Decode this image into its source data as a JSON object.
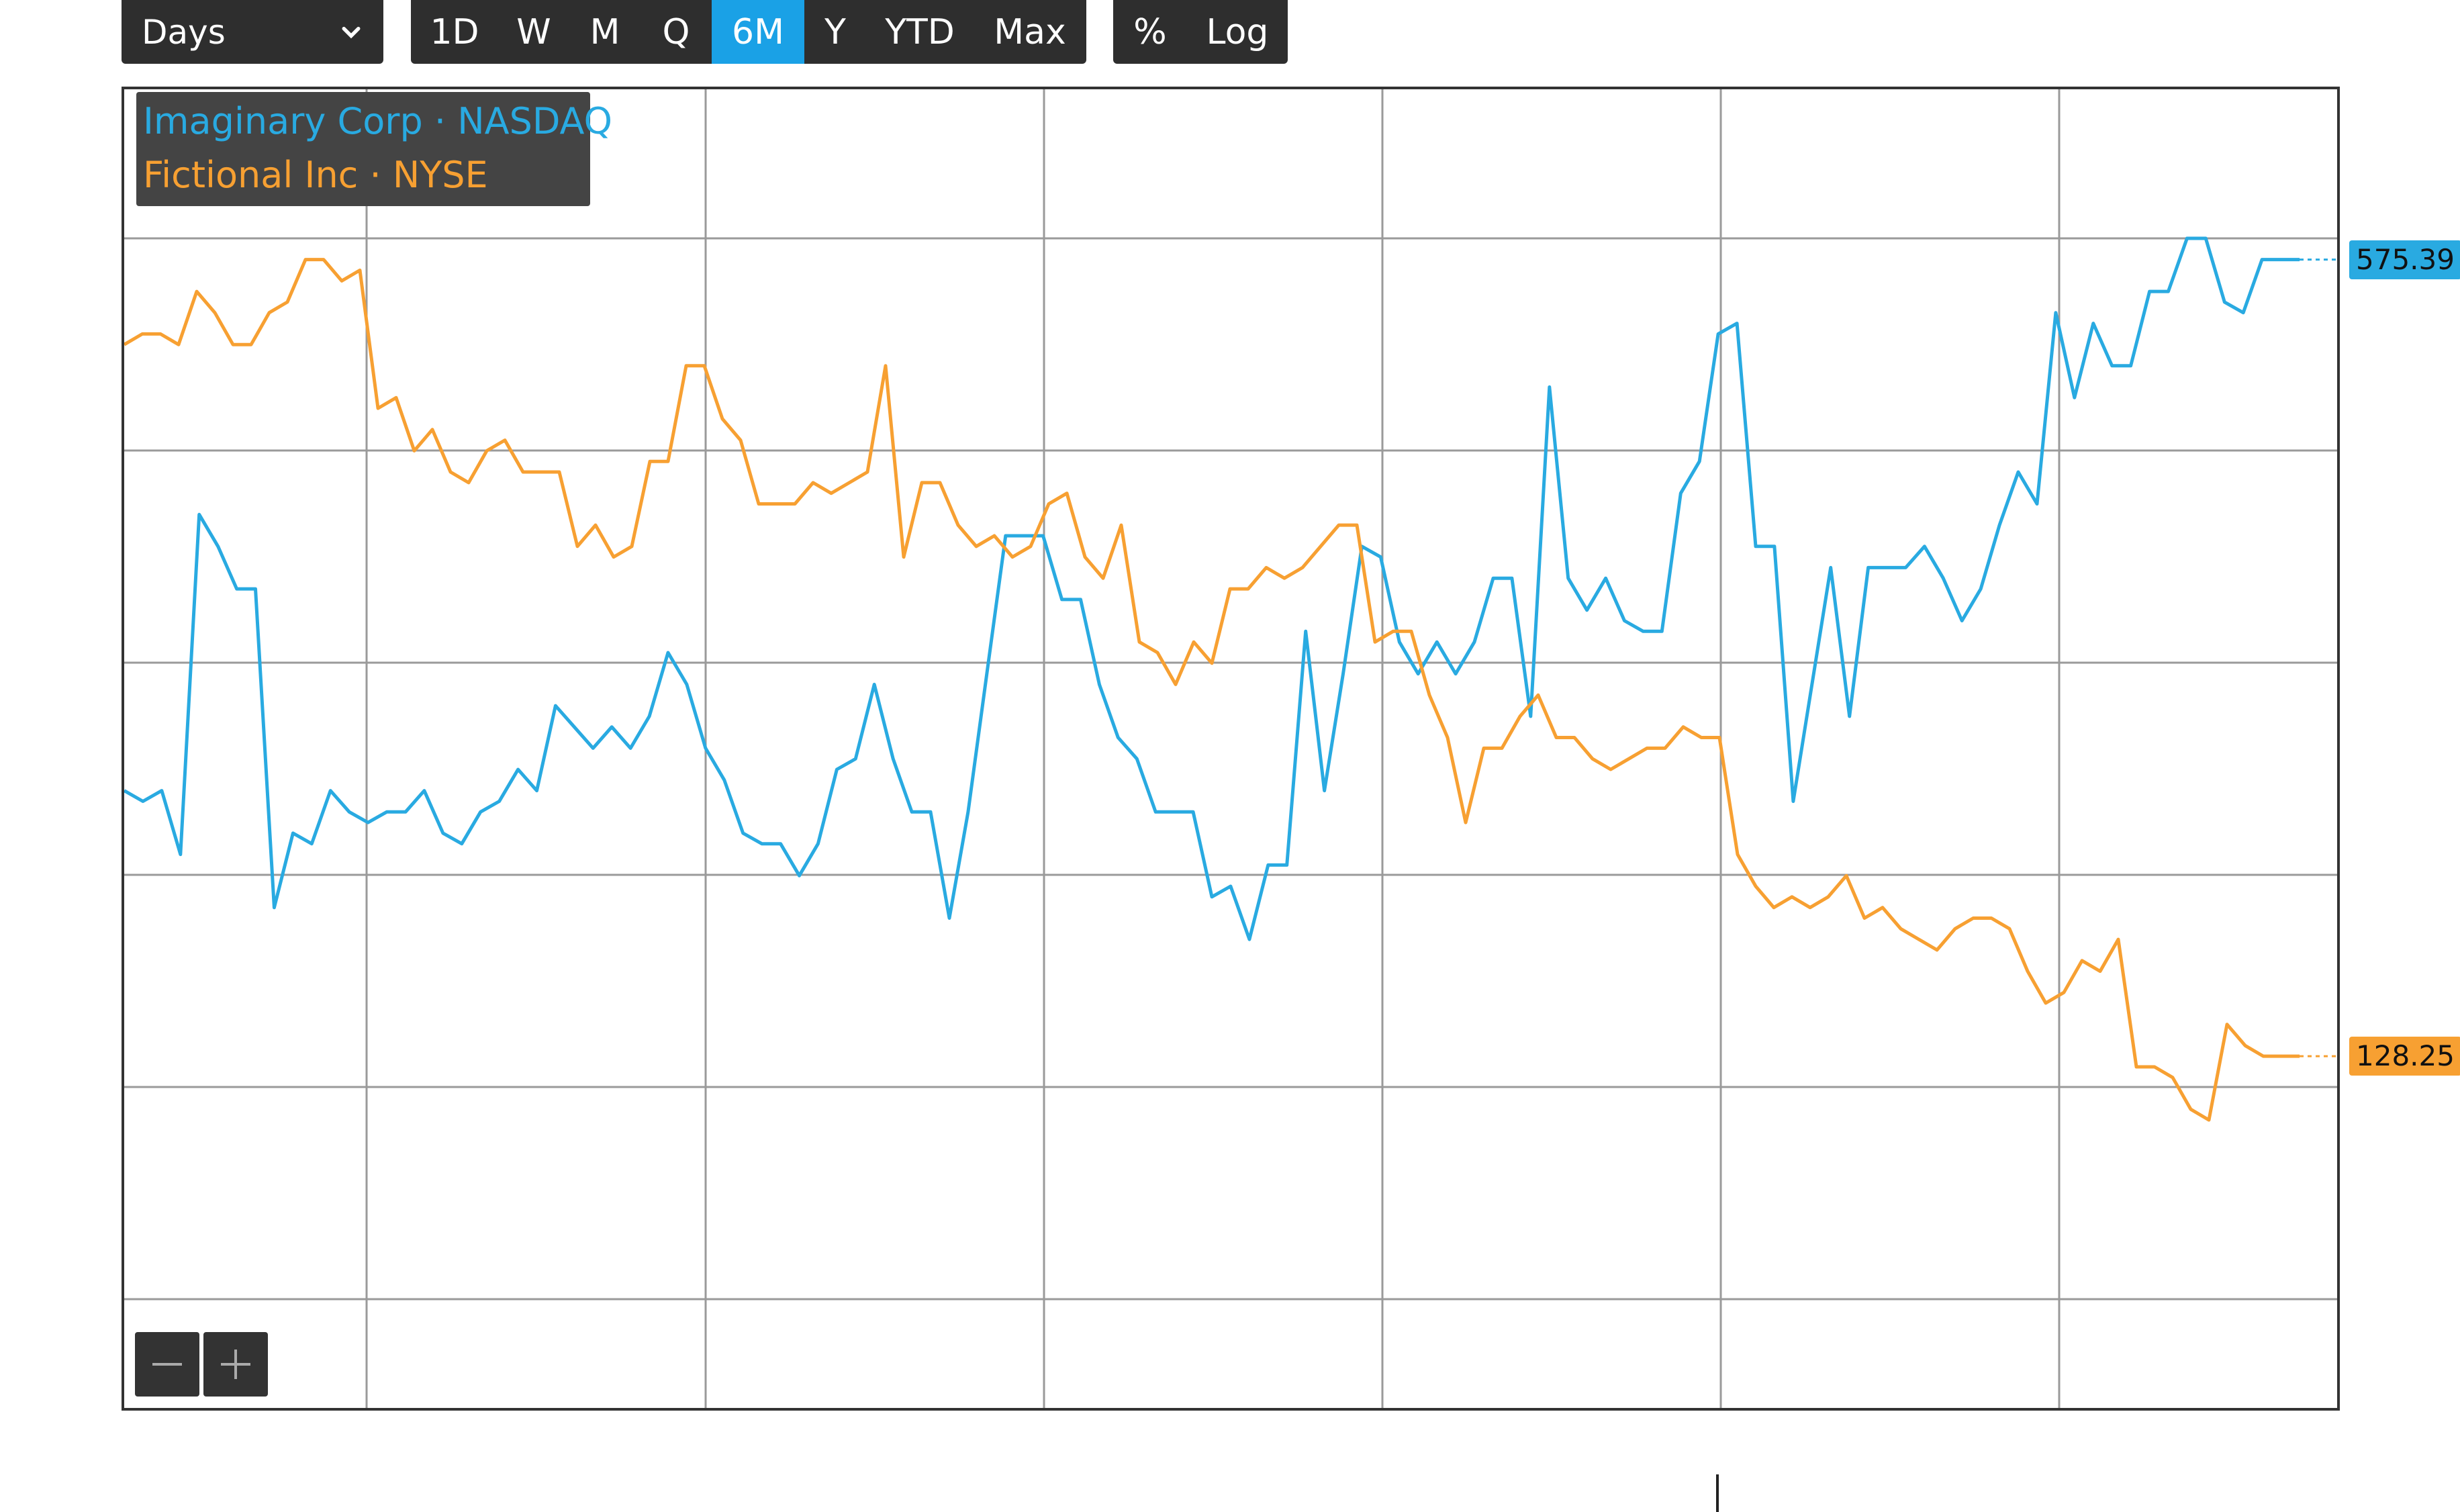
{
  "toolbar": {
    "interval": "Days",
    "ranges": [
      "1D",
      "W",
      "M",
      "Q",
      "6M",
      "Y",
      "YTD",
      "Max"
    ],
    "active_range": "6M",
    "scale_options": [
      "%",
      "Log"
    ]
  },
  "legend": {
    "series_a": "Imaginary Corp · NASDAQ",
    "series_b": "Fictional Inc · NYSE"
  },
  "colors": {
    "series_a": "#29aae1",
    "series_b": "#f7a032",
    "active_button": "#1aa1e6",
    "toolbar_bg": "#2e2e2e"
  },
  "zoom": {
    "out_icon": "minus-icon",
    "in_icon": "plus-icon"
  },
  "chart_data": {
    "type": "line",
    "grid": true,
    "series": [
      {
        "name": "Imaginary Corp · NASDAQ",
        "last_value": "575.39",
        "values": [
          0.48,
          0.47,
          0.48,
          0.42,
          0.74,
          0.71,
          0.67,
          0.67,
          0.37,
          0.44,
          0.43,
          0.48,
          0.46,
          0.45,
          0.46,
          0.46,
          0.48,
          0.44,
          0.43,
          0.46,
          0.47,
          0.5,
          0.48,
          0.56,
          0.54,
          0.52,
          0.54,
          0.52,
          0.55,
          0.61,
          0.58,
          0.52,
          0.49,
          0.44,
          0.43,
          0.43,
          0.4,
          0.43,
          0.5,
          0.51,
          0.58,
          0.51,
          0.46,
          0.46,
          0.36,
          0.46,
          0.59,
          0.72,
          0.72,
          0.72,
          0.66,
          0.66,
          0.58,
          0.53,
          0.51,
          0.46,
          0.46,
          0.46,
          0.38,
          0.39,
          0.34,
          0.41,
          0.41,
          0.63,
          0.48,
          0.59,
          0.71,
          0.7,
          0.62,
          0.59,
          0.62,
          0.59,
          0.62,
          0.68,
          0.68,
          0.55,
          0.86,
          0.68,
          0.65,
          0.68,
          0.64,
          0.63,
          0.63,
          0.76,
          0.79,
          0.91,
          0.92,
          0.71,
          0.71,
          0.47,
          0.58,
          0.69,
          0.55,
          0.69,
          0.69,
          0.69,
          0.71,
          0.68,
          0.64,
          0.67,
          0.73,
          0.78,
          0.75,
          0.93,
          0.85,
          0.92,
          0.88,
          0.88,
          0.95,
          0.95,
          1.0,
          1.0,
          0.94,
          0.93,
          0.98,
          0.98,
          0.98
        ]
      },
      {
        "name": "Fictional Inc · NYSE",
        "last_value": "128.25",
        "values": [
          0.9,
          0.91,
          0.91,
          0.9,
          0.95,
          0.93,
          0.9,
          0.9,
          0.93,
          0.94,
          0.98,
          0.98,
          0.96,
          0.97,
          0.84,
          0.85,
          0.8,
          0.82,
          0.78,
          0.77,
          0.8,
          0.81,
          0.78,
          0.78,
          0.78,
          0.71,
          0.73,
          0.7,
          0.71,
          0.79,
          0.79,
          0.88,
          0.88,
          0.83,
          0.81,
          0.75,
          0.75,
          0.75,
          0.77,
          0.76,
          0.77,
          0.78,
          0.88,
          0.7,
          0.77,
          0.77,
          0.73,
          0.71,
          0.72,
          0.7,
          0.71,
          0.75,
          0.76,
          0.7,
          0.68,
          0.73,
          0.62,
          0.61,
          0.58,
          0.62,
          0.6,
          0.67,
          0.67,
          0.69,
          0.68,
          0.69,
          0.71,
          0.73,
          0.73,
          0.62,
          0.63,
          0.63,
          0.57,
          0.53,
          0.45,
          0.52,
          0.52,
          0.55,
          0.57,
          0.53,
          0.53,
          0.51,
          0.5,
          0.51,
          0.52,
          0.52,
          0.54,
          0.53,
          0.53,
          0.42,
          0.39,
          0.37,
          0.38,
          0.37,
          0.38,
          0.4,
          0.36,
          0.37,
          0.35,
          0.34,
          0.33,
          0.35,
          0.36,
          0.36,
          0.35,
          0.31,
          0.28,
          0.29,
          0.32,
          0.31,
          0.34,
          0.22,
          0.22,
          0.21,
          0.18,
          0.17,
          0.26,
          0.24,
          0.23,
          0.23,
          0.23
        ]
      }
    ]
  }
}
